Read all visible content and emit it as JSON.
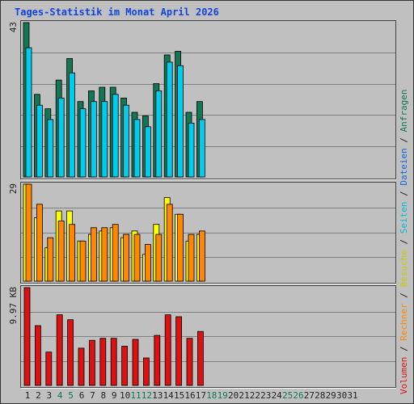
{
  "chart_data": {
    "type": "bar",
    "title": "Tages-Statistik im Monat April 2026",
    "days": [
      "1",
      "2",
      "3",
      "4",
      "5",
      "6",
      "7",
      "8",
      "9",
      "10",
      "11",
      "12",
      "13",
      "14",
      "15",
      "16",
      "17",
      "18",
      "19",
      "20",
      "21",
      "22",
      "23",
      "24",
      "25",
      "26",
      "27",
      "28",
      "29",
      "30",
      "31"
    ],
    "weekend_days": [
      "4",
      "5",
      "11",
      "12",
      "18",
      "19",
      "25",
      "26"
    ],
    "panels": [
      {
        "max_label": "43",
        "ymax": 43,
        "series": [
          {
            "name": "Anfragen",
            "color": "#117755",
            "values": [
              43,
              23,
              19,
              27,
              33,
              21,
              24,
              25,
              25,
              22,
              18,
              17,
              26,
              34,
              35,
              18,
              21,
              null,
              null,
              null,
              null,
              null,
              null,
              null,
              null,
              null,
              null,
              null,
              null,
              null,
              null
            ]
          },
          {
            "name": "Dateien",
            "color": "#1166dd",
            "values": [
              null,
              null,
              null,
              null,
              null,
              null,
              null,
              null,
              null,
              null,
              null,
              null,
              null,
              null,
              null,
              null,
              null,
              null,
              null,
              null,
              null,
              null,
              null,
              null,
              null,
              null,
              null,
              null,
              null,
              null,
              null
            ]
          },
          {
            "name": "Seiten",
            "color": "#00ccee",
            "values": [
              36,
              20,
              16,
              22,
              29,
              19,
              21,
              21,
              23,
              20,
              16,
              14,
              24,
              32,
              31,
              15,
              16,
              null,
              null,
              null,
              null,
              null,
              null,
              null,
              null,
              null,
              null,
              null,
              null,
              null,
              null
            ]
          }
        ]
      },
      {
        "max_label": "29",
        "ymax": 29,
        "series": [
          {
            "name": "Besuche",
            "color": "#ffff00",
            "values": [
              29,
              19,
              10,
              21,
              21,
              12,
              14,
              15,
              16,
              13,
              15,
              8,
              17,
              25,
              20,
              12,
              14,
              null,
              null,
              null,
              null,
              null,
              null,
              null,
              null,
              null,
              null,
              null,
              null,
              null,
              null
            ]
          },
          {
            "name": "Rechner",
            "color": "#ff8800",
            "values": [
              29,
              23,
              13,
              18,
              17,
              12,
              16,
              16,
              17,
              14,
              14,
              11,
              14,
              23,
              20,
              14,
              15,
              null,
              null,
              null,
              null,
              null,
              null,
              null,
              null,
              null,
              null,
              null,
              null,
              null,
              null
            ]
          }
        ]
      },
      {
        "max_label": "9.97 KB",
        "ymax": 9.97,
        "series": [
          {
            "name": "Volumen",
            "color": "#dd1111",
            "values": [
              9.97,
              6.1,
              3.4,
              7.2,
              6.7,
              3.8,
              4.6,
              4.8,
              4.8,
              4.0,
              4.7,
              2.8,
              5.1,
              7.2,
              7.0,
              4.8,
              5.5,
              null,
              null,
              null,
              null,
              null,
              null,
              null,
              null,
              null,
              null,
              null,
              null,
              null,
              null
            ]
          }
        ]
      }
    ],
    "legend": [
      {
        "text": "Volumen",
        "color": "#dd1111"
      },
      {
        "text": " / ",
        "color": "#222222"
      },
      {
        "text": "Rechner",
        "color": "#ff8800"
      },
      {
        "text": " / ",
        "color": "#222222"
      },
      {
        "text": "Besuche",
        "color": "#cccc00"
      },
      {
        "text": " / ",
        "color": "#222222"
      },
      {
        "text": "Seiten",
        "color": "#00bbdd"
      },
      {
        "text": " / ",
        "color": "#222222"
      },
      {
        "text": "Dateien",
        "color": "#1166dd"
      },
      {
        "text": " / ",
        "color": "#222222"
      },
      {
        "text": "Anfragen",
        "color": "#117755"
      }
    ],
    "colors": {
      "background": "#c0c0c0",
      "title": "#1144dd",
      "weekday_label": "#222222",
      "weekend_label": "#117755"
    },
    "grid": true
  }
}
